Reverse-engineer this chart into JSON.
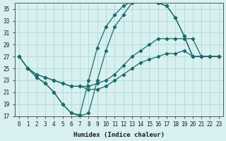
{
  "xlabel": "Humidex (Indice chaleur)",
  "bg_color": "#d8f0f0",
  "grid_color": "#b0d8d8",
  "line_color": "#1a6b6b",
  "xlim": [
    -0.5,
    23.5
  ],
  "ylim": [
    17,
    36
  ],
  "yticks": [
    17,
    19,
    21,
    23,
    25,
    27,
    29,
    31,
    33,
    35
  ],
  "xticks": [
    0,
    1,
    2,
    3,
    4,
    5,
    6,
    7,
    8,
    9,
    10,
    11,
    12,
    13,
    14,
    15,
    16,
    17,
    18,
    19,
    20,
    21,
    22,
    23
  ],
  "curve1_x": [
    0,
    1,
    2,
    3,
    4,
    5,
    6,
    7,
    8,
    9,
    10,
    11,
    12,
    13,
    14,
    15,
    16,
    17,
    18,
    19,
    20,
    21,
    22,
    23
  ],
  "curve1_y": [
    27,
    25,
    24,
    23.5,
    23,
    22.5,
    22,
    22,
    22,
    22.5,
    23,
    24,
    25.5,
    27,
    28,
    29,
    30,
    30,
    30,
    30,
    30,
    27,
    27,
    27
  ],
  "curve2_x": [
    0,
    1,
    2,
    3,
    4,
    5,
    6,
    7,
    8,
    9,
    10,
    11,
    12,
    13,
    14,
    15,
    16,
    17,
    18,
    19,
    20,
    21,
    22,
    23
  ],
  "curve2_y": [
    27,
    25,
    24,
    23.5,
    23,
    22.5,
    22,
    22,
    21.5,
    21.5,
    22,
    23,
    24,
    25,
    26,
    26.5,
    27,
    27.5,
    27.5,
    28,
    27,
    27,
    27,
    27
  ],
  "curve3_x": [
    1,
    2,
    3,
    4,
    5,
    6,
    7,
    8,
    9,
    10,
    11,
    12,
    13,
    14,
    15,
    16,
    17,
    18,
    19,
    20,
    21,
    22,
    23
  ],
  "curve3_y": [
    25,
    23.5,
    22.5,
    21,
    19,
    17.5,
    17.2,
    23,
    28.5,
    32,
    34,
    35.5,
    36.2,
    36.5,
    36.5,
    36,
    35.5,
    33.5,
    30.5,
    27,
    27,
    27,
    27
  ],
  "curve4_x": [
    0,
    1,
    2,
    3,
    4,
    5,
    6,
    7,
    8,
    9,
    10,
    11,
    12,
    13,
    14,
    15,
    16,
    17,
    18,
    19,
    20,
    21,
    22,
    23
  ],
  "curve4_y": [
    27,
    25,
    23.5,
    22.5,
    21,
    19,
    17.5,
    17,
    17.5,
    23,
    28,
    32,
    34,
    36,
    36.5,
    36.5,
    36,
    35.5,
    33.5,
    30.5,
    27,
    27,
    27,
    27
  ]
}
